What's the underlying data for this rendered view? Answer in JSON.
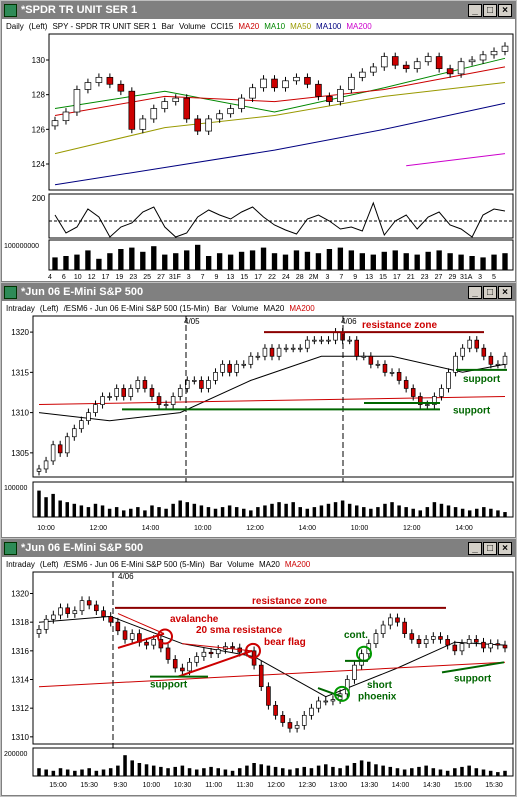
{
  "windows": [
    {
      "title": "*SPDR TR UNIT SER 1",
      "header": [
        {
          "text": "Daily",
          "color": "#000000"
        },
        {
          "text": "(Left)",
          "color": "#000000"
        },
        {
          "text": "SPY - SPDR TR UNIT SER 1",
          "color": "#000000"
        },
        {
          "text": "Bar",
          "color": "#000000"
        },
        {
          "text": "Volume",
          "color": "#000000"
        },
        {
          "text": "CCI15",
          "color": "#000000"
        },
        {
          "text": "MA20",
          "color": "#cc0000"
        },
        {
          "text": "MA10",
          "color": "#008800"
        },
        {
          "text": "MA50",
          "color": "#999900"
        },
        {
          "text": "MA100",
          "color": "#000080"
        },
        {
          "text": "MA200",
          "color": "#cc00cc"
        }
      ]
    },
    {
      "title": "*Jun 06  E-Mini S&P 500",
      "header": [
        {
          "text": "Intraday",
          "color": "#000000"
        },
        {
          "text": "(Left)",
          "color": "#000000"
        },
        {
          "text": "/ESM6 - Jun 06  E-Mini S&P 500  (15-Min)",
          "color": "#000000"
        },
        {
          "text": "Bar",
          "color": "#000000"
        },
        {
          "text": "Volume",
          "color": "#000000"
        },
        {
          "text": "MA20",
          "color": "#000000"
        },
        {
          "text": "MA200",
          "color": "#cc0000"
        }
      ]
    },
    {
      "title": "*Jun 06  E-Mini S&P 500",
      "header": [
        {
          "text": "Intraday",
          "color": "#000000"
        },
        {
          "text": "(Left)",
          "color": "#000000"
        },
        {
          "text": "/ESM6 - Jun 06  E-Mini S&P 500  (5-Min)",
          "color": "#000000"
        },
        {
          "text": "Bar",
          "color": "#000000"
        },
        {
          "text": "Volume",
          "color": "#000000"
        },
        {
          "text": "MA20",
          "color": "#000000"
        },
        {
          "text": "MA200",
          "color": "#cc0000"
        }
      ]
    }
  ],
  "chart_data": [
    {
      "type": "bar",
      "subtype": "candlestick",
      "symbol": "SPY",
      "interval": "Daily",
      "ylim": [
        122.5,
        131.5
      ],
      "y_ticks": [
        124,
        126,
        128,
        130
      ],
      "x_tick_labels": [
        "4",
        "6",
        "10",
        "12",
        "17",
        "19",
        "23",
        "25",
        "27",
        "31F",
        "3",
        "7",
        "9",
        "13",
        "15",
        "17",
        "22",
        "24",
        "28",
        "2M",
        "3",
        "7",
        "9",
        "13",
        "15",
        "17",
        "21",
        "23",
        "27",
        "29",
        "31A",
        "3",
        "5"
      ],
      "close": [
        126.5,
        127.0,
        128.3,
        128.7,
        129.0,
        128.6,
        128.2,
        126.0,
        126.6,
        127.2,
        127.6,
        127.8,
        126.6,
        125.9,
        126.6,
        126.9,
        127.2,
        127.8,
        128.4,
        128.9,
        128.4,
        128.8,
        129.0,
        128.6,
        127.9,
        127.6,
        128.3,
        129.0,
        129.3,
        129.6,
        130.2,
        129.7,
        129.5,
        129.9,
        130.2,
        129.5,
        129.2,
        129.9,
        130.0,
        130.3,
        130.5,
        130.8
      ],
      "ma_series": [
        {
          "name": "MA10",
          "color": "#008800",
          "values": [
            [
              0,
              127.2
            ],
            [
              10,
              128.2
            ],
            [
              20,
              127.0
            ],
            [
              30,
              128.4
            ],
            [
              41,
              130.1
            ]
          ]
        },
        {
          "name": "MA20",
          "color": "#cc0000",
          "values": [
            [
              0,
              126.8
            ],
            [
              10,
              127.9
            ],
            [
              20,
              127.6
            ],
            [
              30,
              128.3
            ],
            [
              41,
              129.6
            ]
          ]
        },
        {
          "name": "MA50",
          "color": "#999900",
          "values": [
            [
              0,
              124.6
            ],
            [
              10,
              126.1
            ],
            [
              20,
              126.8
            ],
            [
              30,
              127.9
            ],
            [
              41,
              128.7
            ]
          ]
        },
        {
          "name": "MA100",
          "color": "#000080",
          "values": [
            [
              0,
              122.8
            ],
            [
              10,
              123.8
            ],
            [
              20,
              124.8
            ],
            [
              30,
              126.0
            ],
            [
              41,
              127.5
            ]
          ]
        },
        {
          "name": "MA200",
          "color": "#cc00cc",
          "values": [
            [
              32,
              123.9
            ],
            [
              41,
              124.6
            ]
          ]
        }
      ],
      "cci": {
        "ylabel": "200",
        "values": [
          60,
          -120,
          -60,
          120,
          40,
          -160,
          -60,
          -20,
          90,
          140,
          -60,
          -160,
          -120,
          40,
          110,
          60,
          20,
          90,
          140,
          40,
          -40,
          -90,
          -130,
          20,
          60,
          0,
          -80,
          -60,
          -100,
          180,
          -140,
          0,
          60,
          -80,
          40,
          90,
          -40,
          -80,
          -160,
          60,
          120,
          100
        ]
      },
      "volume": {
        "ylabel": "100000000",
        "values": [
          45,
          50,
          55,
          70,
          40,
          60,
          75,
          80,
          65,
          85,
          55,
          60,
          70,
          90,
          50,
          60,
          55,
          65,
          70,
          80,
          60,
          55,
          70,
          65,
          60,
          75,
          80,
          70,
          60,
          55,
          65,
          70,
          60,
          55,
          65,
          70,
          60,
          55,
          50,
          45,
          55,
          60
        ]
      }
    },
    {
      "type": "bar",
      "subtype": "candlestick",
      "symbol": "/ESM6",
      "interval": "15-Min",
      "ylim": [
        1302,
        1322
      ],
      "y_ticks": [
        1305,
        1310,
        1315,
        1320
      ],
      "x_tick_labels": [
        "10:00",
        "12:00",
        "14:00",
        "10:00",
        "12:00",
        "14:00",
        "10:00",
        "12:00",
        "14:00"
      ],
      "session_markers": [
        "4/05",
        "4/06"
      ],
      "close": [
        1303,
        1304,
        1306,
        1305,
        1307,
        1308,
        1309,
        1310,
        1311,
        1312,
        1312,
        1313,
        1312,
        1313,
        1314,
        1313,
        1312,
        1311,
        1311,
        1312,
        1313,
        1314,
        1314,
        1313,
        1314,
        1315,
        1316,
        1315,
        1316,
        1316,
        1317,
        1317,
        1318,
        1317,
        1318,
        1318,
        1318,
        1318,
        1319,
        1319,
        1319,
        1319,
        1320,
        1319,
        1319,
        1317,
        1317,
        1316,
        1316,
        1315,
        1315,
        1314,
        1313,
        1312,
        1311,
        1311,
        1312,
        1313,
        1315,
        1317,
        1318,
        1319,
        1318,
        1317,
        1316,
        1316,
        1317
      ],
      "ma20": [
        [
          0,
          1310
        ],
        [
          10,
          1309
        ],
        [
          20,
          1310
        ],
        [
          30,
          1314
        ],
        [
          40,
          1317
        ],
        [
          50,
          1317
        ],
        [
          60,
          1315
        ],
        [
          66,
          1316
        ]
      ],
      "ma200": [
        [
          0,
          1311
        ],
        [
          66,
          1312
        ]
      ],
      "annotations": [
        {
          "text": "resistance zone",
          "color": "#cc0000"
        },
        {
          "text": "support",
          "color": "#006600"
        },
        {
          "text": "support",
          "color": "#006600"
        }
      ],
      "volume": {
        "ylabel": "100000",
        "values": [
          80,
          60,
          70,
          50,
          45,
          40,
          35,
          30,
          40,
          35,
          25,
          30,
          20,
          25,
          30,
          20,
          35,
          30,
          25,
          40,
          50,
          45,
          40,
          35,
          30,
          25,
          30,
          35,
          30,
          25,
          20,
          30,
          35,
          40,
          45,
          40,
          45,
          30,
          25,
          30,
          35,
          40,
          45,
          50,
          40,
          35,
          30,
          25,
          30,
          40,
          45,
          35,
          30,
          25,
          20,
          30,
          45,
          40,
          35,
          30,
          25,
          20,
          25,
          30,
          25,
          20,
          15
        ]
      }
    },
    {
      "type": "bar",
      "subtype": "candlestick",
      "symbol": "/ESM6",
      "interval": "5-Min",
      "ylim": [
        1309.5,
        1321.5
      ],
      "y_ticks": [
        1310,
        1312,
        1314,
        1316,
        1318,
        1320
      ],
      "x_tick_labels": [
        "15:00",
        "15:30",
        "9:30",
        "10:00",
        "10:30",
        "11:00",
        "11:30",
        "12:00",
        "12:30",
        "13:00",
        "13:30",
        "14:00",
        "14:30",
        "15:00",
        "15:30"
      ],
      "session_markers": [
        "4/06"
      ],
      "close": [
        1317.5,
        1318.2,
        1318.5,
        1319.0,
        1318.6,
        1318.8,
        1319.5,
        1319.2,
        1318.8,
        1318.4,
        1318.0,
        1317.4,
        1316.8,
        1317.2,
        1316.6,
        1316.4,
        1316.8,
        1316.2,
        1315.4,
        1314.8,
        1314.6,
        1315.2,
        1315.6,
        1315.9,
        1315.8,
        1316.1,
        1316.3,
        1316.2,
        1315.9,
        1316.0,
        1315.0,
        1313.5,
        1312.2,
        1311.5,
        1311.0,
        1310.6,
        1310.8,
        1311.5,
        1312.0,
        1312.5,
        1312.5,
        1312.6,
        1313.0,
        1314.0,
        1315.0,
        1315.8,
        1316.5,
        1317.2,
        1317.8,
        1318.3,
        1318.0,
        1317.2,
        1316.8,
        1316.5,
        1316.8,
        1317.0,
        1316.8,
        1316.4,
        1316.0,
        1316.5,
        1316.8,
        1316.6,
        1316.2,
        1316.5,
        1316.4,
        1316.2
      ],
      "ma20": [
        [
          0,
          1318.0
        ],
        [
          10,
          1318.4
        ],
        [
          20,
          1316.5
        ],
        [
          30,
          1315.6
        ],
        [
          40,
          1312.8
        ],
        [
          50,
          1314.8
        ],
        [
          58,
          1316.6
        ],
        [
          65,
          1316.4
        ]
      ],
      "ma200": [
        [
          0,
          1313.5
        ],
        [
          65,
          1315.2
        ]
      ],
      "annotations": [
        {
          "text": "resistance zone",
          "color": "#cc0000"
        },
        {
          "text": "avalanche",
          "color": "#cc0000"
        },
        {
          "text": "20 sma resistance",
          "color": "#cc0000"
        },
        {
          "text": "bear flag",
          "color": "#cc0000"
        },
        {
          "text": "support",
          "color": "#006600"
        },
        {
          "text": "cont.",
          "color": "#006600"
        },
        {
          "text": "short",
          "color": "#006600"
        },
        {
          "text": "phoenix",
          "color": "#006600"
        },
        {
          "text": "support",
          "color": "#006600"
        }
      ],
      "volume": {
        "ylabel": "200000",
        "values": [
          30,
          25,
          20,
          30,
          25,
          20,
          25,
          30,
          20,
          25,
          30,
          40,
          80,
          60,
          50,
          45,
          40,
          35,
          30,
          35,
          40,
          30,
          25,
          30,
          35,
          30,
          25,
          20,
          30,
          40,
          50,
          45,
          40,
          35,
          30,
          25,
          30,
          35,
          30,
          40,
          45,
          35,
          30,
          40,
          50,
          60,
          55,
          45,
          40,
          35,
          30,
          25,
          30,
          35,
          40,
          30,
          25,
          20,
          30,
          35,
          40,
          30,
          25,
          20,
          15,
          20
        ]
      }
    }
  ]
}
